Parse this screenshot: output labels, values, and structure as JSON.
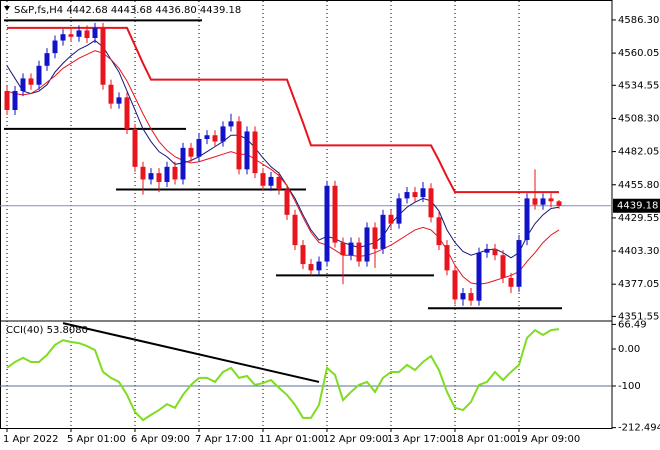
{
  "chart_data": [
    {
      "type": "candlestick",
      "title": "S&P,fs,H4 4442.68 4443.68 4436.80 4439.18",
      "categories": [
        "1 Apr 2022",
        null,
        null,
        null,
        null,
        null,
        null,
        null,
        "5 Apr 01:00",
        null,
        null,
        null,
        null,
        null,
        null,
        null,
        "6 Apr 09:00",
        null,
        null,
        null,
        null,
        null,
        null,
        null,
        "7 Apr 17:00",
        null,
        null,
        null,
        null,
        null,
        null,
        null,
        "11 Apr 01:00",
        null,
        null,
        null,
        null,
        null,
        null,
        null,
        "12 Apr 09:00",
        null,
        null,
        null,
        null,
        null,
        null,
        null,
        "13 Apr 17:00",
        null,
        null,
        null,
        null,
        null,
        null,
        null,
        "18 Apr 01:00",
        null,
        null,
        null,
        null,
        null,
        null,
        null,
        "19 Apr 09:00",
        null,
        null,
        null,
        null,
        null
      ],
      "open": [
        4530,
        4515,
        4530,
        4540,
        4535,
        4550,
        4560,
        4570,
        4575,
        4573,
        4578,
        4572,
        4580,
        4535,
        4520,
        4525,
        4500,
        4470,
        4460,
        4465,
        4458,
        4470,
        4460,
        4485,
        4478,
        4492,
        4495,
        4490,
        4502,
        4506,
        4468,
        4498,
        4465,
        4455,
        4462,
        4452,
        4432,
        4408,
        4393,
        4388,
        4395,
        4455,
        4410,
        4400,
        4410,
        4395,
        4422,
        4405,
        4432,
        4425,
        4445,
        4450,
        4446,
        4453,
        4430,
        4408,
        4388,
        4365,
        4370,
        4364,
        4402,
        4405,
        4400,
        4382,
        4375,
        4412,
        4445,
        4440,
        4445,
        4442.68
      ],
      "high": [
        4534,
        4534,
        4544,
        4544,
        4554,
        4564,
        4574,
        4579,
        4579,
        4582,
        4582,
        4584,
        4584,
        4539,
        4529,
        4529,
        4504,
        4474,
        4469,
        4469,
        4474,
        4474,
        4489,
        4489,
        4496,
        4499,
        4499,
        4506,
        4512,
        4510,
        4502,
        4502,
        4469,
        4466,
        4466,
        4456,
        4436,
        4412,
        4397,
        4399,
        4459,
        4459,
        4414,
        4414,
        4414,
        4426,
        4426,
        4436,
        4436,
        4449,
        4454,
        4454,
        4458,
        4457,
        4434,
        4412,
        4392,
        4374,
        4374,
        4406,
        4409,
        4409,
        4404,
        4386,
        4416,
        4449,
        4468,
        4449,
        4449,
        4443.68
      ],
      "low": [
        4511,
        4511,
        4526,
        4531,
        4531,
        4546,
        4556,
        4566,
        4569,
        4569,
        4568,
        4568,
        4531,
        4516,
        4516,
        4496,
        4466,
        4448,
        4456,
        4450,
        4454,
        4456,
        4456,
        4474,
        4474,
        4488,
        4486,
        4486,
        4498,
        4464,
        4464,
        4461,
        4451,
        4451,
        4448,
        4428,
        4404,
        4389,
        4384,
        4384,
        4391,
        4406,
        4377,
        4396,
        4391,
        4391,
        4390,
        4401,
        4421,
        4421,
        4441,
        4442,
        4442,
        4426,
        4404,
        4384,
        4361,
        4360,
        4360,
        4360,
        4398,
        4396,
        4378,
        4370,
        4371,
        4408,
        4436,
        4436,
        4438,
        4436.8
      ],
      "close": [
        4515,
        4530,
        4540,
        4535,
        4550,
        4560,
        4570,
        4575,
        4573,
        4578,
        4572,
        4580,
        4535,
        4520,
        4525,
        4500,
        4470,
        4460,
        4465,
        4458,
        4470,
        4460,
        4485,
        4478,
        4492,
        4495,
        4490,
        4502,
        4506,
        4468,
        4498,
        4465,
        4455,
        4462,
        4452,
        4432,
        4408,
        4393,
        4388,
        4395,
        4455,
        4410,
        4400,
        4410,
        4395,
        4422,
        4405,
        4432,
        4425,
        4445,
        4450,
        4446,
        4453,
        4430,
        4408,
        4388,
        4365,
        4370,
        4364,
        4402,
        4405,
        4400,
        4382,
        4375,
        4412,
        4445,
        4440,
        4445,
        4442.68,
        4439.18
      ],
      "up_color": "#1212c8",
      "down_color": "#e8141e",
      "lines": [
        {
          "color": "#16167a",
          "values": [
            4550,
            4540,
            4530,
            4528,
            4530,
            4535,
            4545,
            4552,
            4558,
            4563,
            4566,
            4570,
            4565,
            4555,
            4545,
            4530,
            4515,
            4500,
            4490,
            4482,
            4478,
            4472,
            4473,
            4475,
            4478,
            4482,
            4486,
            4490,
            4495,
            4495,
            4492,
            4485,
            4477,
            4470,
            4465,
            4455,
            4445,
            4432,
            4420,
            4412,
            4415,
            4413,
            4410,
            4408,
            4406,
            4408,
            4410,
            4415,
            4425,
            4432,
            4438,
            4442,
            4445,
            4443,
            4435,
            4420,
            4410,
            4403,
            4400,
            4402,
            4404,
            4405,
            4402,
            4398,
            4402,
            4415,
            4425,
            4432,
            4437,
            4438
          ]
        },
        {
          "color": "#e8141e",
          "values": [
            4530,
            4528,
            4527,
            4528,
            4532,
            4537,
            4542,
            4548,
            4552,
            4556,
            4559,
            4562,
            4560,
            4555,
            4548,
            4538,
            4525,
            4512,
            4500,
            4490,
            4483,
            4478,
            4475,
            4473,
            4474,
            4476,
            4478,
            4480,
            4482,
            4480,
            4480,
            4476,
            4472,
            4468,
            4463,
            4455,
            4443,
            4430,
            4418,
            4410,
            4408,
            4404,
            4400,
            4400,
            4399,
            4400,
            4402,
            4405,
            4408,
            4412,
            4416,
            4420,
            4422,
            4420,
            4414,
            4404,
            4392,
            4383,
            4378,
            4377,
            4378,
            4380,
            4382,
            4384,
            4387,
            4395,
            4402,
            4410,
            4416,
            4420
          ]
        },
        {
          "color": "#e8141e",
          "values": [
            4580,
            4580,
            4580,
            4580,
            4580,
            4580,
            4580,
            4580,
            4580,
            4580,
            4580,
            4580,
            4580,
            4580,
            4580,
            4580,
            4566,
            4552,
            4539,
            4539,
            4539,
            4539,
            4539,
            4539,
            4539,
            4539,
            4539,
            4539,
            4539,
            4539,
            4539,
            4539,
            4539,
            4539,
            4539,
            4539,
            4522,
            4505,
            4487,
            4487,
            4487,
            4487,
            4487,
            4487,
            4487,
            4487,
            4487,
            4487,
            4487,
            4487,
            4487,
            4487,
            4487,
            4487,
            4475,
            4462,
            4450,
            4450,
            4450,
            4450,
            4450,
            4450,
            4450,
            4450,
            4450,
            4450,
            4450,
            4450,
            4450,
            4450
          ]
        }
      ],
      "level_color": "#000000",
      "levels": [
        {
          "start": 0,
          "end": 24,
          "value": 4586
        },
        {
          "start": 0,
          "end": 22,
          "value": 4500
        },
        {
          "start": 14,
          "end": 37,
          "value": 4452
        },
        {
          "start": 34,
          "end": 53,
          "value": 4384
        },
        {
          "start": 53,
          "end": 69,
          "value": 4358
        }
      ],
      "price_line_color": "#8090b0",
      "ylim": [
        4348.7,
        4602.1
      ],
      "yticks": [
        {
          "value": 4586.3,
          "label": "4586.30"
        },
        4560.05,
        4534.55,
        {
          "value": 4508.3,
          "label": "4508.30"
        },
        4482.05,
        {
          "value": 4455.8,
          "label": "4455.80"
        },
        4429.55,
        {
          "value": 4403.3,
          "label": "4403.30"
        },
        4377.05,
        4351.55
      ],
      "grid": true
    },
    {
      "type": "line",
      "title": "CCI(40) 53.8080",
      "color": "#80dc20",
      "values": [
        -51,
        -35,
        -24,
        -35,
        -35,
        -16,
        11,
        24,
        19,
        16,
        8,
        -3,
        -62,
        -78,
        -89,
        -124,
        -170,
        -192,
        -178,
        -165,
        -149,
        -159,
        -124,
        -97,
        -78,
        -78,
        -89,
        -62,
        -51,
        -78,
        -73,
        -97,
        -92,
        -84,
        -105,
        -124,
        -151,
        -186,
        -186,
        -151,
        -51,
        -70,
        -138,
        -116,
        -97,
        -89,
        -116,
        -78,
        -62,
        -62,
        -43,
        -57,
        -35,
        -19,
        -57,
        -116,
        -159,
        -165,
        -143,
        -97,
        -89,
        -62,
        -84,
        -62,
        -43,
        30,
        51,
        38,
        51,
        53.808
      ],
      "ylim": [
        -213.5,
        73
      ],
      "yticks": [
        66.49,
        {
          "value": 0,
          "label": "0.00"
        },
        -100,
        -212.494
      ],
      "level_color": "#5a6e9a",
      "levels": [
        -100
      ],
      "trend": {
        "start": 7,
        "end": 39,
        "from": 70,
        "to": -89,
        "color": "#000000"
      }
    }
  ]
}
